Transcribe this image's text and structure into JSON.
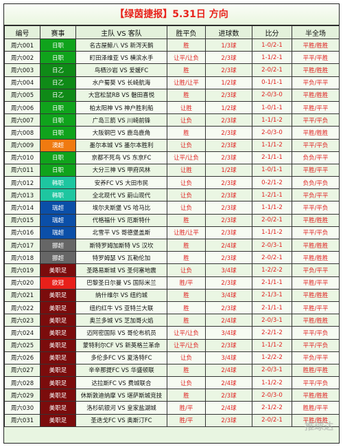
{
  "title": "【绿茵捷报】5.31日 方向",
  "watermark": "推球达",
  "columns": [
    "编号",
    "赛事",
    "主队 VS 客队",
    "胜平负",
    "进球数",
    "比分",
    "半全场"
  ],
  "league_colors": {
    "日职": "#10a31c",
    "日乙": "#0f8a17",
    "澳超": "#f07a10",
    "韩职": "#1ec6a0",
    "瑞超": "#0b4fa8",
    "挪超": "#666666",
    "美职足": "#7b0c0c",
    "欧冠": "#e8201a"
  },
  "rows": [
    {
      "id": "周六001",
      "league": "日职",
      "match": "名古屋鲸八 VS 新泻天鹅",
      "result": "胜",
      "goals": "1/3球",
      "score": "1-0/2-1",
      "half": "平胜/胜胜"
    },
    {
      "id": "周六002",
      "league": "日职",
      "match": "町田泽维亚 VS 横滨水手",
      "result": "让平/让负",
      "goals": "2/3球",
      "score": "1-1/2-1",
      "half": "平平/平胜"
    },
    {
      "id": "周六003",
      "league": "日乙",
      "match": "鸟栖沙岩 VS 爱媛FC",
      "result": "胜",
      "goals": "2/3球",
      "score": "2-0/2-1",
      "half": "平胜/胜胜"
    },
    {
      "id": "周六004",
      "league": "日乙",
      "match": "水户蜀葵 VS 长崎航海",
      "result": "让胜/让平",
      "goals": "1/2球",
      "score": "0-1/1-1",
      "half": "平负/平平"
    },
    {
      "id": "周六005",
      "league": "日乙",
      "match": "大宫松鼠RB VS 磐田喜悦",
      "result": "胜",
      "goals": "2/3球",
      "score": "2-0/3-0",
      "half": "平胜/胜胜"
    },
    {
      "id": "周六006",
      "league": "日职",
      "match": "柏太阳神 VS 神户胜利船",
      "result": "让胜",
      "goals": "1/2球",
      "score": "1-0/1-1",
      "half": "平胜/平平"
    },
    {
      "id": "周六007",
      "league": "日职",
      "match": "广岛三箭 VS 川崎前锋",
      "result": "让负",
      "goals": "2/3球",
      "score": "1-1/1-2",
      "half": "平平/平负"
    },
    {
      "id": "周六008",
      "league": "日职",
      "match": "大阪钢巴 VS 鹿岛鹿角",
      "result": "胜",
      "goals": "2/3球",
      "score": "2-0/3-0",
      "half": "平胜/胜胜"
    },
    {
      "id": "周六009",
      "league": "澳超",
      "match": "墨尔本城 VS 墨尔本胜利",
      "result": "让负",
      "goals": "2/3球",
      "score": "1-1/1-2",
      "half": "平平/平负"
    },
    {
      "id": "周六010",
      "league": "日职",
      "match": "京都不死鸟 VS 东京FC",
      "result": "让平/让负",
      "goals": "2/3球",
      "score": "2-1/1-1",
      "half": "负负/平平"
    },
    {
      "id": "周六011",
      "league": "日职",
      "match": "大分三神 VS 甲府风林",
      "result": "让胜",
      "goals": "1/2球",
      "score": "1-0/1-1",
      "half": "平胜/平平"
    },
    {
      "id": "周六012",
      "league": "韩职",
      "match": "安养FC VS 大田市民",
      "result": "让负",
      "goals": "2/3球",
      "score": "0-2/1-2",
      "half": "负负/平负"
    },
    {
      "id": "周六013",
      "league": "韩职",
      "match": "全北现代 VS 蔚山现代",
      "result": "让负",
      "goals": "2/3球",
      "score": "1-2/1-1",
      "half": "平负/平平"
    },
    {
      "id": "周六014",
      "league": "瑞超",
      "match": "埃尔夫斯堡 VS 哈马比",
      "result": "让负",
      "goals": "2/3球",
      "score": "1-1/1-2",
      "half": "平平/平负"
    },
    {
      "id": "周六015",
      "league": "瑞超",
      "match": "代格福什 VS 厄斯特什",
      "result": "胜",
      "goals": "2/3球",
      "score": "2-0/2-1",
      "half": "平胜/胜胜"
    },
    {
      "id": "周六016",
      "league": "瑞超",
      "match": "北雪平 VS 哥德堡盖斯",
      "result": "让胜/让平",
      "goals": "2/3球",
      "score": "1-1/1-2",
      "half": "平平/平负"
    },
    {
      "id": "周六017",
      "league": "挪超",
      "match": "斯特罗姆加斯特 VS 汉坎",
      "result": "胜",
      "goals": "2/4球",
      "score": "2-0/3-1",
      "half": "平胜/胜胜"
    },
    {
      "id": "周六018",
      "league": "挪超",
      "match": "特罗姆瑟 VS 瓦勒伦加",
      "result": "胜",
      "goals": "2/3球",
      "score": "2-0/2-1",
      "half": "平胜/胜胜"
    },
    {
      "id": "周六019",
      "league": "美职足",
      "match": "圣路易斯城 VS 圣何塞地震",
      "result": "让负",
      "goals": "3/4球",
      "score": "1-2/2-2",
      "half": "平负/平平"
    },
    {
      "id": "周六020",
      "league": "欧冠",
      "match": "巴黎圣日尔曼 VS 国际米兰",
      "result": "胜/平",
      "goals": "2/3球",
      "score": "2-1/1-1",
      "half": "平胜/平平"
    },
    {
      "id": "周六021",
      "league": "美职足",
      "match": "纳什维尔 VS 纽约城",
      "result": "胜",
      "goals": "3/4球",
      "score": "2-1/3-1",
      "half": "平胜/胜胜"
    },
    {
      "id": "周六022",
      "league": "美职足",
      "match": "纽约红牛 VS 亚特兰大联",
      "result": "胜",
      "goals": "2/3球",
      "score": "2-1/1-1",
      "half": "平胜/平平"
    },
    {
      "id": "周六023",
      "league": "美职足",
      "match": "奥兰多城 VS 芝加哥火焰",
      "result": "胜",
      "goals": "2/4球",
      "score": "2-0/3-1",
      "half": "平胜/胜胜"
    },
    {
      "id": "周六024",
      "league": "美职足",
      "match": "迈阿密国际 VS 哥伦布机员",
      "result": "让平/让负",
      "goals": "3/4球",
      "score": "2-2/1-2",
      "half": "平平/平负"
    },
    {
      "id": "周六025",
      "league": "美职足",
      "match": "蒙特利尔CF VS 新英格兰革命",
      "result": "让平/让负",
      "goals": "2/3球",
      "score": "1-1/1-2",
      "half": "平平/平负"
    },
    {
      "id": "周六026",
      "league": "美职足",
      "match": "多伦多FC VS 夏洛特FC",
      "result": "让负",
      "goals": "3/4球",
      "score": "1-2/2-2",
      "half": "平负/平平"
    },
    {
      "id": "周六027",
      "league": "美职足",
      "match": "辛辛那提FC VS 华盛顿联",
      "result": "胜",
      "goals": "2/4球",
      "score": "2-0/3-1",
      "half": "胜胜/平胜"
    },
    {
      "id": "周六028",
      "league": "美职足",
      "match": "达拉斯FC VS 费城联合",
      "result": "让负",
      "goals": "2/4球",
      "score": "1-1/2-2",
      "half": "平平/平负"
    },
    {
      "id": "周六029",
      "league": "美职足",
      "match": "休斯敦迪纳摩 VS 堪萨斯城竞技",
      "result": "胜",
      "goals": "2/3球",
      "score": "2-0/3-0",
      "half": "平胜/胜胜"
    },
    {
      "id": "周六030",
      "league": "美职足",
      "match": "洛杉矶银河 VS 皇家盐湖城",
      "result": "胜/平",
      "goals": "2/4球",
      "score": "2-1/2-2",
      "half": "胜胜/平平"
    },
    {
      "id": "周六031",
      "league": "美职足",
      "match": "圣迭戈FC VS 奥斯汀FC",
      "result": "胜/平",
      "goals": "2/3球",
      "score": "2-0/2-1",
      "half": "平胜/胜胜"
    }
  ]
}
